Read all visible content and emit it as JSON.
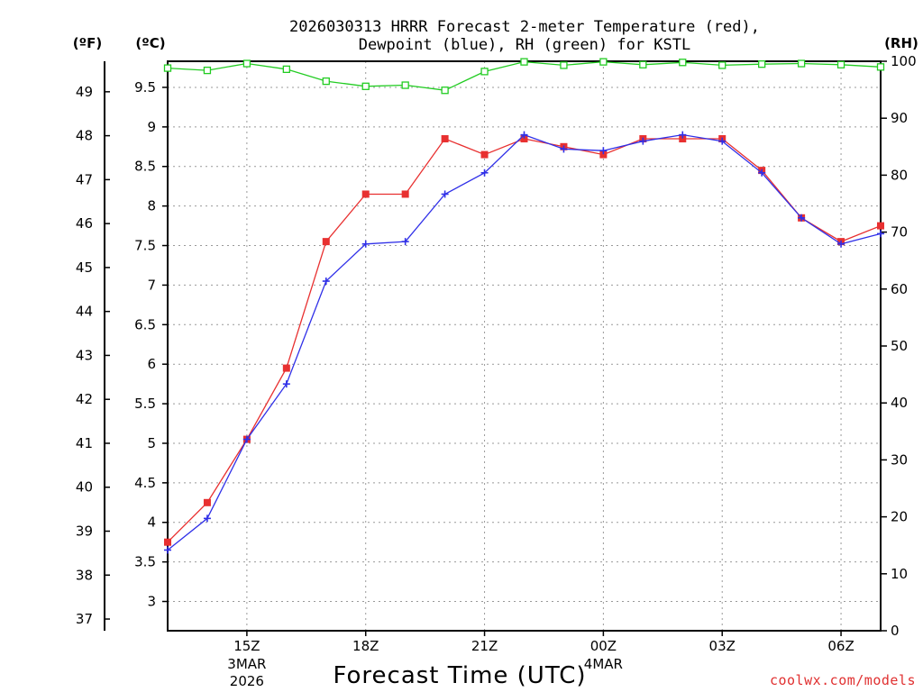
{
  "chart_data": {
    "type": "line",
    "title_line1": "2026030313 HRRR Forecast 2-meter Temperature (red),",
    "title_line2": "Dewpoint (blue), RH (green) for KSTL",
    "xlabel": "Forecast Time (UTC)",
    "unit_f": "(ºF)",
    "unit_c": "(ºC)",
    "unit_rh": "(RH)",
    "credit": "coolwx.com/models",
    "x": [
      13,
      14,
      15,
      16,
      17,
      18,
      19,
      20,
      21,
      22,
      23,
      24,
      25,
      26,
      27,
      28,
      29,
      30,
      31
    ],
    "xlim": [
      13,
      31
    ],
    "x_ticks": [
      {
        "x": 15,
        "label": "15Z",
        "sub1": "3MAR",
        "sub2": "2026"
      },
      {
        "x": 18,
        "label": "18Z",
        "sub1": "",
        "sub2": ""
      },
      {
        "x": 21,
        "label": "21Z",
        "sub1": "",
        "sub2": ""
      },
      {
        "x": 24,
        "label": "00Z",
        "sub1": "4MAR",
        "sub2": ""
      },
      {
        "x": 27,
        "label": "03Z",
        "sub1": "",
        "sub2": ""
      },
      {
        "x": 30,
        "label": "06Z",
        "sub1": "",
        "sub2": ""
      }
    ],
    "c_ticks": [
      "3",
      "3.5",
      "4",
      "4.5",
      "5",
      "5.5",
      "6",
      "6.5",
      "7",
      "7.5",
      "8",
      "8.5",
      "9",
      "9.5"
    ],
    "ylim_c": [
      2.63,
      9.83
    ],
    "f_ticks": [
      "37",
      "38",
      "39",
      "40",
      "41",
      "42",
      "43",
      "44",
      "45",
      "46",
      "47",
      "48",
      "49"
    ],
    "rh_ticks": [
      "0",
      "10",
      "20",
      "30",
      "40",
      "50",
      "60",
      "70",
      "80",
      "90",
      "100"
    ],
    "ylim_rh": [
      0,
      100
    ],
    "series": [
      {
        "name": "Temperature",
        "axis": "c",
        "color": "#e83030",
        "marker": "square",
        "values": [
          3.75,
          4.25,
          5.05,
          5.95,
          7.55,
          8.15,
          8.15,
          8.85,
          8.65,
          8.85,
          8.75,
          8.65,
          8.85,
          8.85,
          8.85,
          8.45,
          7.85,
          7.55,
          7.75
        ]
      },
      {
        "name": "Dewpoint",
        "axis": "c",
        "color": "#3030e8",
        "marker": "plus",
        "values": [
          3.65,
          4.05,
          5.05,
          5.75,
          7.05,
          7.52,
          7.55,
          8.15,
          8.42,
          8.9,
          8.72,
          8.7,
          8.82,
          8.9,
          8.82,
          8.42,
          7.85,
          7.52,
          7.65
        ]
      },
      {
        "name": "RH",
        "axis": "rh",
        "color": "#22cc22",
        "marker": "open-square",
        "values": [
          98.8,
          98.4,
          99.6,
          98.6,
          96.5,
          95.6,
          95.8,
          94.9,
          98.2,
          99.9,
          99.3,
          99.9,
          99.4,
          99.8,
          99.3,
          99.5,
          99.6,
          99.4,
          99.0
        ]
      }
    ]
  }
}
